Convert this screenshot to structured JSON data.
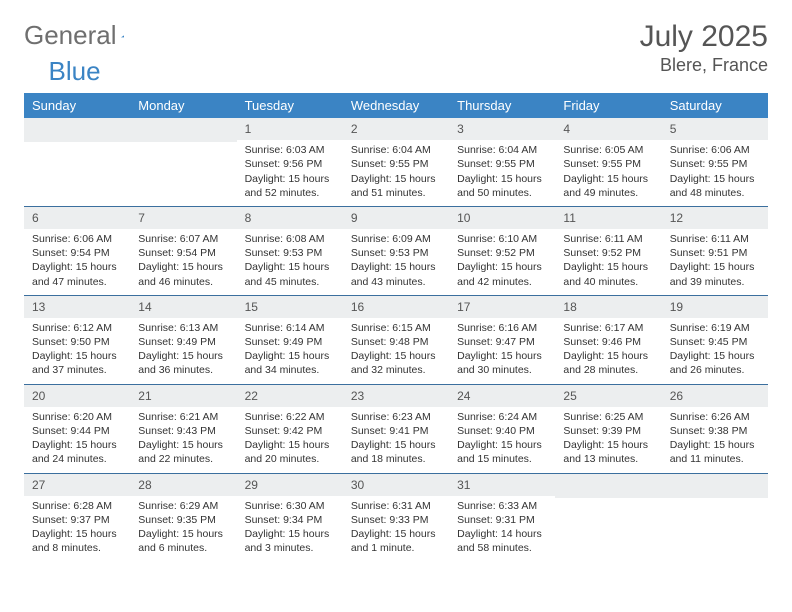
{
  "brand": {
    "part1": "General",
    "part2": "Blue"
  },
  "header": {
    "month_title": "July 2025",
    "location": "Blere, France"
  },
  "colors": {
    "header_bg": "#3b84c4",
    "header_text": "#ffffff",
    "daynum_bg": "#eceeef",
    "border": "#3b6f9e",
    "text": "#333333",
    "title": "#555555",
    "logo_gray": "#6f6f6f"
  },
  "weekdays": [
    "Sunday",
    "Monday",
    "Tuesday",
    "Wednesday",
    "Thursday",
    "Friday",
    "Saturday"
  ],
  "weeks": [
    [
      null,
      null,
      {
        "n": "1",
        "sr": "6:03 AM",
        "ss": "9:56 PM",
        "dl": "15 hours and 52 minutes."
      },
      {
        "n": "2",
        "sr": "6:04 AM",
        "ss": "9:55 PM",
        "dl": "15 hours and 51 minutes."
      },
      {
        "n": "3",
        "sr": "6:04 AM",
        "ss": "9:55 PM",
        "dl": "15 hours and 50 minutes."
      },
      {
        "n": "4",
        "sr": "6:05 AM",
        "ss": "9:55 PM",
        "dl": "15 hours and 49 minutes."
      },
      {
        "n": "5",
        "sr": "6:06 AM",
        "ss": "9:55 PM",
        "dl": "15 hours and 48 minutes."
      }
    ],
    [
      {
        "n": "6",
        "sr": "6:06 AM",
        "ss": "9:54 PM",
        "dl": "15 hours and 47 minutes."
      },
      {
        "n": "7",
        "sr": "6:07 AM",
        "ss": "9:54 PM",
        "dl": "15 hours and 46 minutes."
      },
      {
        "n": "8",
        "sr": "6:08 AM",
        "ss": "9:53 PM",
        "dl": "15 hours and 45 minutes."
      },
      {
        "n": "9",
        "sr": "6:09 AM",
        "ss": "9:53 PM",
        "dl": "15 hours and 43 minutes."
      },
      {
        "n": "10",
        "sr": "6:10 AM",
        "ss": "9:52 PM",
        "dl": "15 hours and 42 minutes."
      },
      {
        "n": "11",
        "sr": "6:11 AM",
        "ss": "9:52 PM",
        "dl": "15 hours and 40 minutes."
      },
      {
        "n": "12",
        "sr": "6:11 AM",
        "ss": "9:51 PM",
        "dl": "15 hours and 39 minutes."
      }
    ],
    [
      {
        "n": "13",
        "sr": "6:12 AM",
        "ss": "9:50 PM",
        "dl": "15 hours and 37 minutes."
      },
      {
        "n": "14",
        "sr": "6:13 AM",
        "ss": "9:49 PM",
        "dl": "15 hours and 36 minutes."
      },
      {
        "n": "15",
        "sr": "6:14 AM",
        "ss": "9:49 PM",
        "dl": "15 hours and 34 minutes."
      },
      {
        "n": "16",
        "sr": "6:15 AM",
        "ss": "9:48 PM",
        "dl": "15 hours and 32 minutes."
      },
      {
        "n": "17",
        "sr": "6:16 AM",
        "ss": "9:47 PM",
        "dl": "15 hours and 30 minutes."
      },
      {
        "n": "18",
        "sr": "6:17 AM",
        "ss": "9:46 PM",
        "dl": "15 hours and 28 minutes."
      },
      {
        "n": "19",
        "sr": "6:19 AM",
        "ss": "9:45 PM",
        "dl": "15 hours and 26 minutes."
      }
    ],
    [
      {
        "n": "20",
        "sr": "6:20 AM",
        "ss": "9:44 PM",
        "dl": "15 hours and 24 minutes."
      },
      {
        "n": "21",
        "sr": "6:21 AM",
        "ss": "9:43 PM",
        "dl": "15 hours and 22 minutes."
      },
      {
        "n": "22",
        "sr": "6:22 AM",
        "ss": "9:42 PM",
        "dl": "15 hours and 20 minutes."
      },
      {
        "n": "23",
        "sr": "6:23 AM",
        "ss": "9:41 PM",
        "dl": "15 hours and 18 minutes."
      },
      {
        "n": "24",
        "sr": "6:24 AM",
        "ss": "9:40 PM",
        "dl": "15 hours and 15 minutes."
      },
      {
        "n": "25",
        "sr": "6:25 AM",
        "ss": "9:39 PM",
        "dl": "15 hours and 13 minutes."
      },
      {
        "n": "26",
        "sr": "6:26 AM",
        "ss": "9:38 PM",
        "dl": "15 hours and 11 minutes."
      }
    ],
    [
      {
        "n": "27",
        "sr": "6:28 AM",
        "ss": "9:37 PM",
        "dl": "15 hours and 8 minutes."
      },
      {
        "n": "28",
        "sr": "6:29 AM",
        "ss": "9:35 PM",
        "dl": "15 hours and 6 minutes."
      },
      {
        "n": "29",
        "sr": "6:30 AM",
        "ss": "9:34 PM",
        "dl": "15 hours and 3 minutes."
      },
      {
        "n": "30",
        "sr": "6:31 AM",
        "ss": "9:33 PM",
        "dl": "15 hours and 1 minute."
      },
      {
        "n": "31",
        "sr": "6:33 AM",
        "ss": "9:31 PM",
        "dl": "14 hours and 58 minutes."
      },
      null,
      null
    ]
  ],
  "labels": {
    "sunrise": "Sunrise: ",
    "sunset": "Sunset: ",
    "daylight": "Daylight: "
  }
}
